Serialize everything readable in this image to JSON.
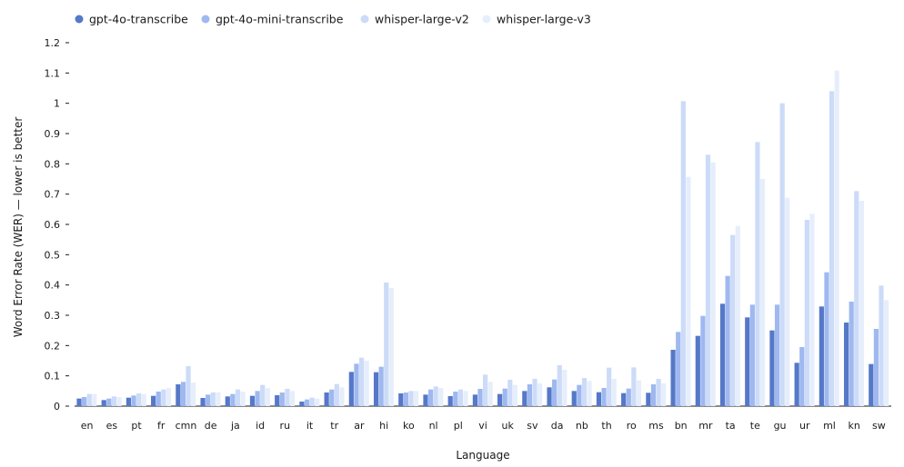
{
  "chart_data": {
    "type": "bar",
    "title": "",
    "xlabel": "Language",
    "ylabel": "Word Error Rate (WER) — lower is better",
    "ylim": [
      0,
      1.2
    ],
    "yticks": [
      "0",
      "0.1",
      "0.2",
      "0.3",
      "0.4",
      "0.5",
      "0.6",
      "0.7",
      "0.8",
      "0.9",
      "1",
      "1.1",
      "1.2"
    ],
    "grid": false,
    "legend_position": "top-left",
    "categories": [
      "en",
      "es",
      "pt",
      "fr",
      "cmn",
      "de",
      "ja",
      "id",
      "ru",
      "it",
      "tr",
      "ar",
      "hi",
      "ko",
      "nl",
      "pl",
      "vi",
      "uk",
      "sv",
      "da",
      "nb",
      "th",
      "ro",
      "ms",
      "bn",
      "mr",
      "ta",
      "te",
      "gu",
      "ur",
      "ml",
      "kn",
      "sw"
    ],
    "series": [
      {
        "name": "gpt-4o-transcribe",
        "color": "#5578c8",
        "values": [
          0.025,
          0.02,
          0.028,
          0.034,
          0.072,
          0.027,
          0.032,
          0.034,
          0.036,
          0.015,
          0.045,
          0.113,
          0.112,
          0.042,
          0.038,
          0.033,
          0.038,
          0.04,
          0.05,
          0.062,
          0.05,
          0.046,
          0.043,
          0.044,
          0.186,
          0.232,
          0.338,
          0.293,
          0.25,
          0.143,
          0.329,
          0.276,
          0.139
        ]
      },
      {
        "name": "gpt-4o-mini-transcribe",
        "color": "#9fb8f0",
        "values": [
          0.03,
          0.025,
          0.035,
          0.048,
          0.08,
          0.038,
          0.04,
          0.05,
          0.045,
          0.022,
          0.055,
          0.14,
          0.13,
          0.045,
          0.055,
          0.048,
          0.057,
          0.058,
          0.072,
          0.088,
          0.07,
          0.06,
          0.058,
          0.072,
          0.245,
          0.298,
          0.43,
          0.335,
          0.335,
          0.195,
          0.442,
          0.345,
          0.255
        ]
      },
      {
        "name": "whisper-large-v2",
        "color": "#ccdbf7",
        "values": [
          0.04,
          0.032,
          0.042,
          0.055,
          0.132,
          0.045,
          0.055,
          0.07,
          0.057,
          0.028,
          0.073,
          0.16,
          0.408,
          0.05,
          0.065,
          0.055,
          0.104,
          0.087,
          0.09,
          0.135,
          0.093,
          0.127,
          0.128,
          0.09,
          1.007,
          0.83,
          0.565,
          0.872,
          1.0,
          0.615,
          1.04,
          0.71,
          0.398
        ]
      },
      {
        "name": "whisper-large-v3",
        "color": "#e6eefc",
        "values": [
          0.04,
          0.03,
          0.04,
          0.06,
          0.078,
          0.045,
          0.048,
          0.06,
          0.05,
          0.025,
          0.062,
          0.15,
          0.39,
          0.05,
          0.06,
          0.05,
          0.08,
          0.07,
          0.075,
          0.12,
          0.083,
          0.09,
          0.085,
          0.075,
          0.757,
          0.805,
          0.595,
          0.75,
          0.688,
          0.635,
          1.108,
          0.678,
          0.35
        ]
      }
    ]
  }
}
